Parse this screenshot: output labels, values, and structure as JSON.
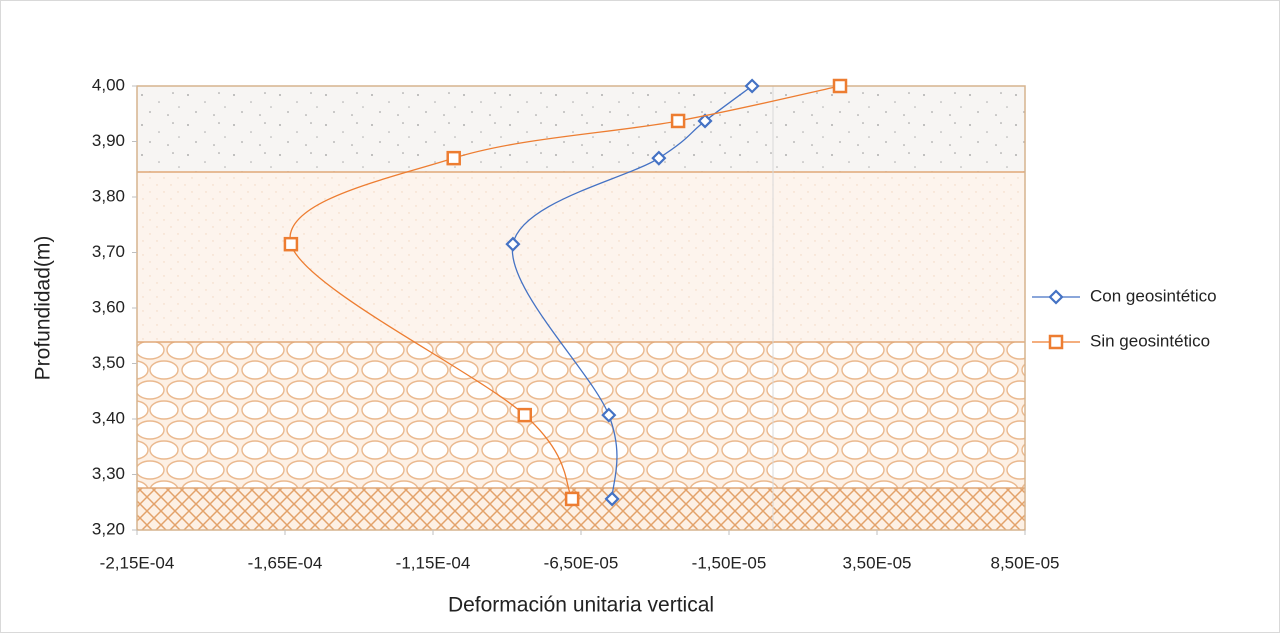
{
  "chart_data": {
    "type": "scatter",
    "xlabel": "Deformación unitaria vertical",
    "ylabel": "Profundidad(m)",
    "xlim": [
      -0.000215,
      8.5e-05
    ],
    "xticks": [
      {
        "value": -0.000215,
        "label": "-2,15E-04"
      },
      {
        "value": -0.000165,
        "label": "-1,65E-04"
      },
      {
        "value": -0.000115,
        "label": "-1,15E-04"
      },
      {
        "value": -6.5e-05,
        "label": "-6,50E-05"
      },
      {
        "value": -1.5e-05,
        "label": "-1,50E-05"
      },
      {
        "value": 3.5e-05,
        "label": "3,50E-05"
      },
      {
        "value": 8.5e-05,
        "label": "8,50E-05"
      }
    ],
    "ylim": [
      3.2,
      4.0
    ],
    "yticks": [
      {
        "value": 3.2,
        "label": "3,20"
      },
      {
        "value": 3.3,
        "label": "3,30"
      },
      {
        "value": 3.4,
        "label": "3,40"
      },
      {
        "value": 3.5,
        "label": "3,50"
      },
      {
        "value": 3.6,
        "label": "3,60"
      },
      {
        "value": 3.7,
        "label": "3,70"
      },
      {
        "value": 3.8,
        "label": "3,80"
      },
      {
        "value": 3.9,
        "label": "3,90"
      },
      {
        "value": 4.0,
        "label": "4,00"
      }
    ],
    "legend": "right",
    "series": [
      {
        "name": "Con geosintético",
        "color": "#4472c4",
        "marker": "diamond",
        "x": [
          -7.2e-06,
          -2.31e-05,
          -3.87e-05,
          -8.8e-05,
          -5.56e-05,
          -5.45e-05
        ],
        "values": [
          4.0,
          3.937,
          3.87,
          3.715,
          3.407,
          3.256
        ]
      },
      {
        "name": "Sin geosintético",
        "color": "#ed7d31",
        "marker": "square",
        "x": [
          2.25e-05,
          -3.22e-05,
          -0.000108,
          -0.000163,
          -8.4e-05,
          -6.8e-05
        ],
        "values": [
          4.0,
          3.937,
          3.87,
          3.715,
          3.407,
          3.256
        ]
      }
    ]
  }
}
